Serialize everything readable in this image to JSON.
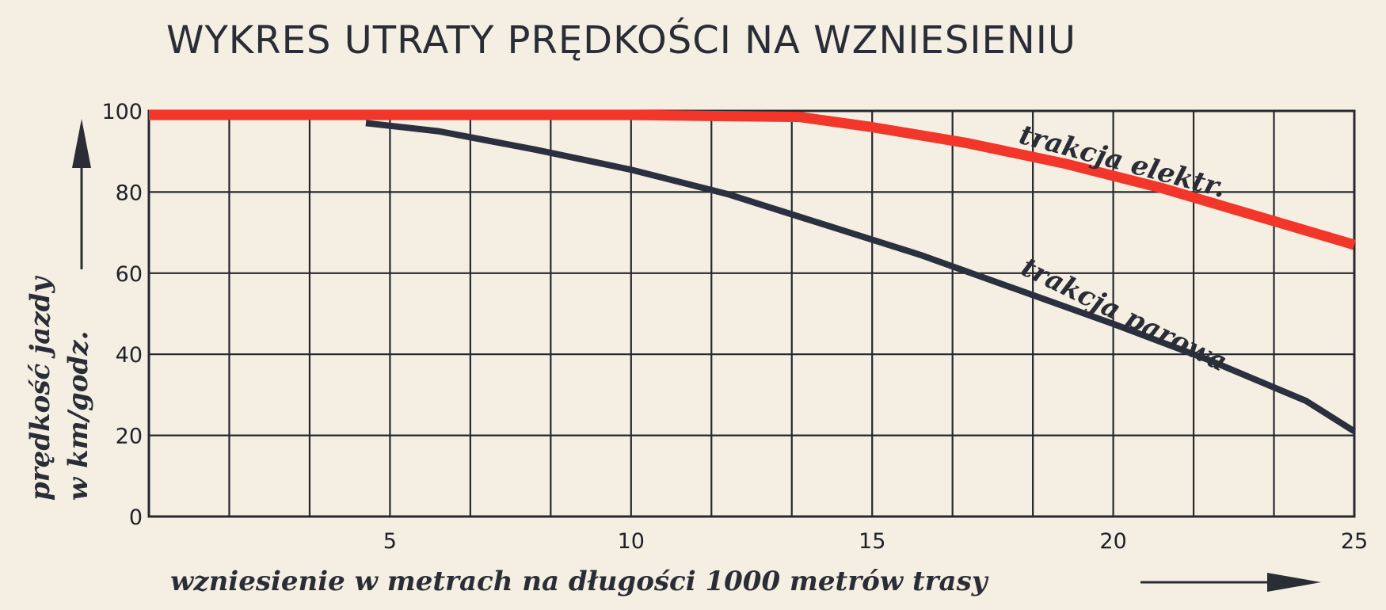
{
  "chart_data": {
    "type": "line",
    "title": "WYKRES UTRATY PRĘDKOŚCI NA WZNIESIENIU",
    "xlabel": "wzniesienie w metrach na długości 1000 metrów trasy",
    "ylabel_line1": "prędkość jazdy",
    "ylabel_line2": "w km/godz.",
    "xlim": [
      0,
      25
    ],
    "ylim": [
      0,
      100
    ],
    "x_ticks": [
      5,
      10,
      15,
      20,
      25
    ],
    "y_ticks": [
      0,
      20,
      40,
      60,
      80,
      100
    ],
    "x_grid_step": 1.667,
    "y_grid_step": 20,
    "grid": true,
    "colors": {
      "electric": "#f2362a",
      "steam": "#2b3040",
      "grid": "#26282e"
    },
    "series": [
      {
        "name": "trakcja elektr.",
        "color": "#f2362a",
        "x": [
          0,
          5,
          10,
          13.5,
          15,
          17,
          19,
          21,
          23,
          25
        ],
        "y": [
          99,
          99,
          99,
          98.5,
          96,
          92,
          87,
          81,
          74,
          67
        ]
      },
      {
        "name": "trakcja parowa",
        "color": "#2b3040",
        "x": [
          4.5,
          6,
          8,
          10,
          12,
          14,
          16,
          18,
          20,
          22,
          24,
          25
        ],
        "y": [
          97,
          95,
          90.5,
          85.5,
          79.5,
          72,
          64.5,
          56,
          47.5,
          38.5,
          28.5,
          21
        ]
      }
    ]
  }
}
